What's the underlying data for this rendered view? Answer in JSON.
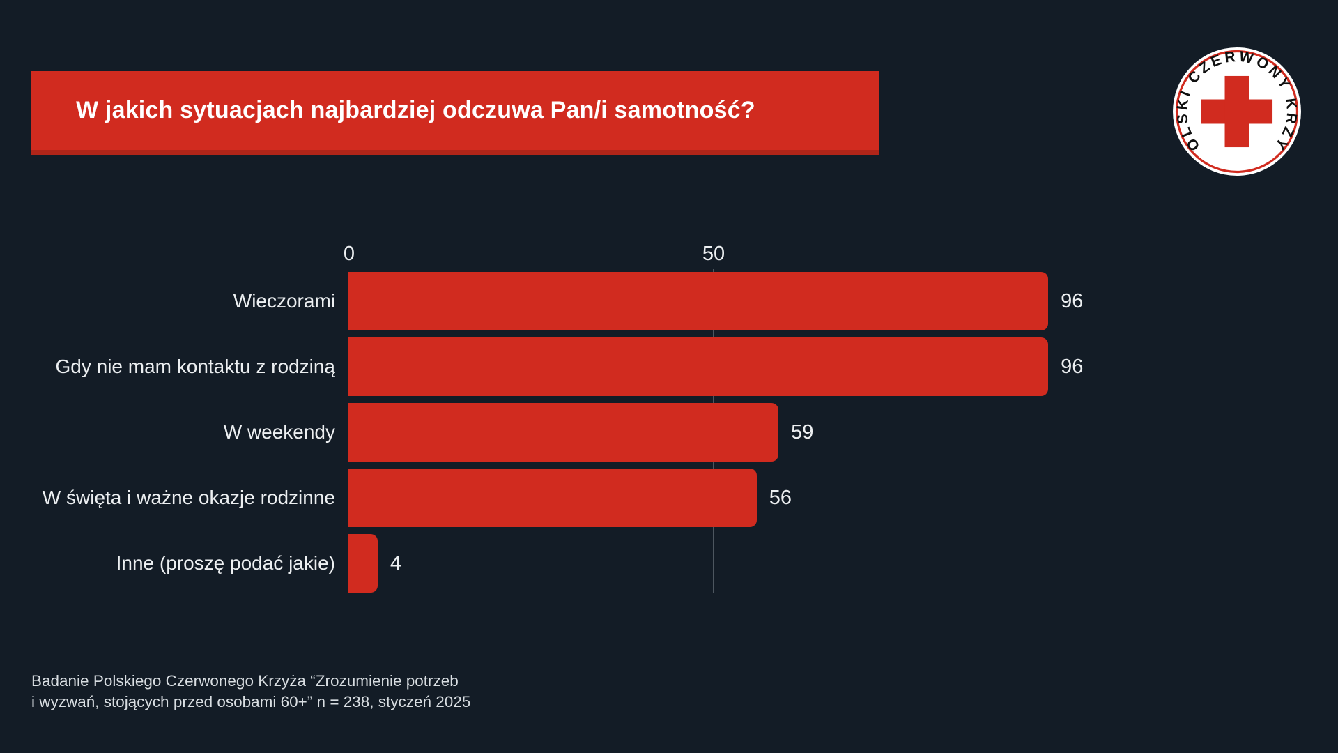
{
  "header": {
    "title": "W jakich sytuacjach najbardziej odczuwa Pan/i samotność?"
  },
  "logo": {
    "name": "Polski Czerwony Krzyż",
    "ring_text": "POLSKI CZERWONY KRZYŻ"
  },
  "colors": {
    "accent_red": "#d12b1f",
    "background": "#131c26",
    "text_light": "#eceff1",
    "gridline": "#4d565f"
  },
  "chart_data": {
    "type": "bar",
    "orientation": "horizontal",
    "title": "W jakich sytuacjach najbardziej odczuwa Pan/i samotność?",
    "categories": [
      "Wieczorami",
      "Gdy nie mam kontaktu z rodziną",
      "W weekendy",
      "W święta i ważne okazje rodzinne",
      "Inne (proszę podać jakie)"
    ],
    "values": [
      96,
      96,
      59,
      56,
      4
    ],
    "bar_color": "#d12b1f",
    "xticks": [
      0,
      50
    ],
    "xlim": [
      0,
      100
    ],
    "grid": "single faint vertical gridline at x=50",
    "value_labels_shown": true,
    "legend": "none"
  },
  "footer": {
    "lines": [
      "Badanie Polskiego Czerwonego Krzyża “Zrozumienie potrzeb",
      "i wyzwań, stojących przed osobami 60+”  n = 238, styczeń 2025"
    ]
  }
}
